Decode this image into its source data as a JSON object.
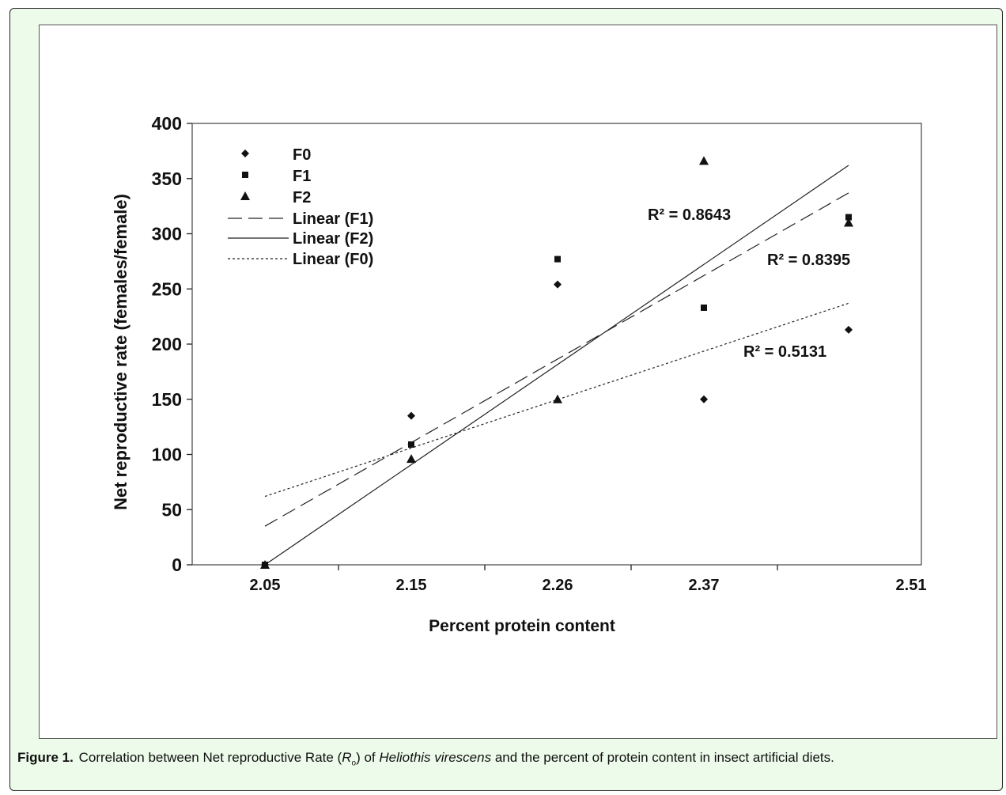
{
  "caption": {
    "label": "Figure 1.",
    "text_1": "Correlation between Net reproductive Rate (",
    "symbol": "R",
    "symbol_sub": "o",
    "text_2": ") of ",
    "species": "Heliothis virescens",
    "text_3": " and the percent of protein content in insect artificial diets."
  },
  "chart_data": {
    "type": "scatter",
    "xlabel": "Percent protein content",
    "ylabel": "Net reproductive rate (females/female)",
    "x_tick_labels": [
      "2.05",
      "2.15",
      "2.26",
      "2.37",
      "2.51"
    ],
    "ylim": [
      0,
      400
    ],
    "y_ticks": [
      0,
      50,
      100,
      150,
      200,
      250,
      300,
      350,
      400
    ],
    "grid": false,
    "legend_position": "top-left",
    "series": [
      {
        "name": "F0",
        "marker": "diamond",
        "values": [
          0,
          135,
          254,
          150,
          213
        ]
      },
      {
        "name": "F1",
        "marker": "square",
        "values": [
          0,
          109,
          277,
          233,
          315
        ]
      },
      {
        "name": "F2",
        "marker": "triangle",
        "values": [
          0,
          96,
          150,
          366,
          310
        ]
      }
    ],
    "trendlines": [
      {
        "name": "Linear (F1)",
        "style": "dashed",
        "start": 35,
        "end": 337,
        "r2_label": "R² = 0.8395"
      },
      {
        "name": "Linear (F2)",
        "style": "solid",
        "start": 0,
        "end": 362,
        "r2_label": "R² = 0.8643"
      },
      {
        "name": "Linear (F0)",
        "style": "dotted",
        "start": 62,
        "end": 237,
        "r2_label": "R² = 0.5131"
      }
    ]
  }
}
